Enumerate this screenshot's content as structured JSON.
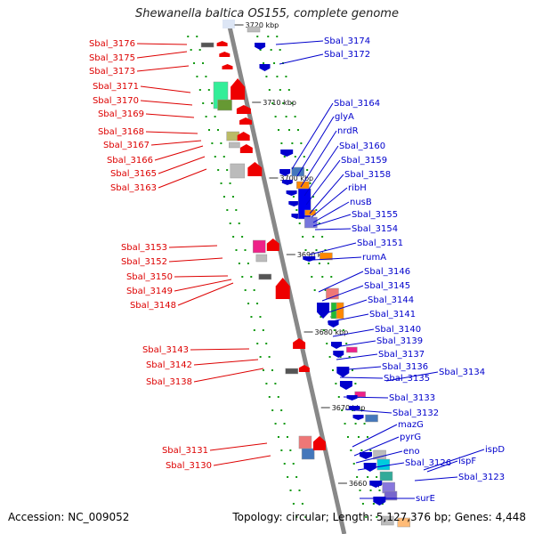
{
  "title": "Shewanella baltica OS155, complete genome",
  "footer": {
    "accession": "Accession: NC_009052",
    "stats": "Topology: circular; Length: 5,127,376 bp; Genes: 4,448"
  },
  "colors": {
    "reverse_strand": "#dd0000",
    "forward_strand": "#0000cc",
    "backbone": "#888888",
    "tick": "#119911"
  },
  "scale_labels": [
    "3720 kbp",
    "3710 kbp",
    "3700 kbp",
    "3690 kbp",
    "3680 kbp",
    "3670 kbp",
    "3660 kbp"
  ],
  "left_genes": [
    "Sbal_3176",
    "Sbal_3175",
    "Sbal_3173",
    "Sbal_3171",
    "Sbal_3170",
    "Sbal_3169",
    "Sbal_3168",
    "Sbal_3167",
    "Sbal_3166",
    "Sbal_3165",
    "Sbal_3163",
    "Sbal_3153",
    "Sbal_3152",
    "Sbal_3150",
    "Sbal_3149",
    "Sbal_3148",
    "Sbal_3143",
    "Sbal_3142",
    "Sbal_3138",
    "Sbal_3131",
    "Sbal_3130"
  ],
  "right_genes": [
    "Sbal_3174",
    "Sbal_3172",
    "Sbal_3164",
    "glyA",
    "nrdR",
    "Sbal_3160",
    "Sbal_3159",
    "Sbal_3158",
    "ribH",
    "nusB",
    "Sbal_3155",
    "Sbal_3154",
    "Sbal_3151",
    "rumA",
    "Sbal_3146",
    "Sbal_3145",
    "Sbal_3144",
    "Sbal_3141",
    "Sbal_3140",
    "Sbal_3139",
    "Sbal_3137",
    "Sbal_3136",
    "Sbal_3135",
    "Sbal_3134",
    "Sbal_3133",
    "Sbal_3132",
    "mazG",
    "pyrG",
    "eno",
    "Sbal_3126",
    "ispF",
    "ispD",
    "Sbal_3123",
    "surE"
  ]
}
